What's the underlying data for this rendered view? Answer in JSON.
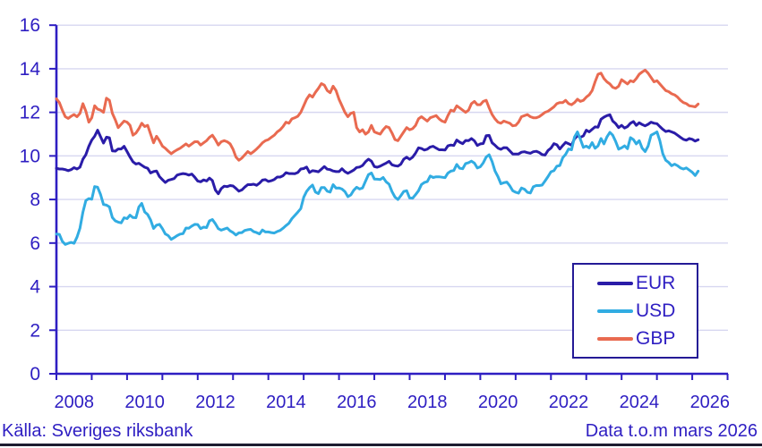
{
  "chart_data": {
    "type": "line",
    "title": "",
    "xlabel": "",
    "ylabel": "",
    "x_unit": "month",
    "x_start": "2008-01",
    "x_end": "2026-03",
    "axis_year_start": 2008,
    "axis_year_end": 2027,
    "ylim": [
      0,
      16
    ],
    "y_ticks": [
      0,
      2,
      4,
      6,
      8,
      10,
      12,
      14,
      16
    ],
    "x_tick_labels": [
      "2008",
      "2010",
      "2012",
      "2014",
      "2016",
      "2018",
      "2020",
      "2022",
      "2024",
      "2026"
    ],
    "grid": "horizontal",
    "legend_position": "lower-right",
    "series": [
      {
        "name": "EUR",
        "color": "#2A1CA8",
        "values": [
          9.43,
          9.4,
          9.4,
          9.37,
          9.32,
          9.37,
          9.46,
          9.4,
          9.48,
          9.85,
          10.06,
          10.44,
          10.73,
          10.9,
          11.18,
          10.88,
          10.59,
          10.86,
          10.83,
          10.23,
          10.22,
          10.32,
          10.32,
          10.44,
          10.2,
          9.95,
          9.73,
          9.63,
          9.66,
          9.57,
          9.48,
          9.43,
          9.22,
          9.28,
          9.31,
          9.05,
          8.91,
          8.78,
          8.88,
          8.92,
          8.96,
          9.12,
          9.16,
          9.19,
          9.17,
          9.12,
          9.17,
          9.02,
          8.85,
          8.81,
          8.9,
          8.85,
          8.98,
          8.87,
          8.44,
          8.26,
          8.5,
          8.61,
          8.59,
          8.64,
          8.62,
          8.51,
          8.38,
          8.44,
          8.57,
          8.68,
          8.68,
          8.7,
          8.65,
          8.75,
          8.89,
          8.91,
          8.83,
          8.86,
          8.92,
          9.03,
          9.03,
          9.09,
          9.23,
          9.19,
          9.19,
          9.18,
          9.24,
          9.4,
          9.42,
          9.49,
          9.24,
          9.32,
          9.3,
          9.27,
          9.39,
          9.51,
          9.39,
          9.37,
          9.31,
          9.28,
          9.28,
          9.41,
          9.28,
          9.2,
          9.27,
          9.35,
          9.47,
          9.49,
          9.56,
          9.73,
          9.85,
          9.76,
          9.51,
          9.48,
          9.53,
          9.6,
          9.67,
          9.75,
          9.59,
          9.55,
          9.53,
          9.62,
          9.85,
          9.94,
          9.84,
          9.94,
          10.13,
          10.37,
          10.34,
          10.27,
          10.31,
          10.41,
          10.44,
          10.36,
          10.28,
          10.28,
          10.27,
          10.46,
          10.5,
          10.48,
          10.73,
          10.63,
          10.56,
          10.71,
          10.7,
          10.8,
          10.69,
          10.48,
          10.55,
          10.57,
          10.93,
          10.94,
          10.6,
          10.49,
          10.36,
          10.3,
          10.38,
          10.37,
          10.23,
          10.09,
          10.09,
          10.09,
          10.17,
          10.19,
          10.15,
          10.12,
          10.19,
          10.21,
          10.16,
          10.06,
          10.04,
          10.25,
          10.36,
          10.56,
          10.51,
          10.32,
          10.48,
          10.62,
          10.56,
          10.49,
          10.78,
          10.93,
          10.85,
          10.92,
          11.18,
          11.1,
          11.22,
          11.33,
          11.32,
          11.68,
          11.78,
          11.85,
          11.89,
          11.6,
          11.48,
          11.3,
          11.4,
          11.28,
          11.35,
          11.5,
          11.58,
          11.4,
          11.52,
          11.44,
          11.38,
          11.45,
          11.55,
          11.5,
          11.48,
          11.35,
          11.22,
          11.12,
          11.15,
          11.1,
          11.05,
          10.95,
          10.85,
          10.76,
          10.72,
          10.8,
          10.76,
          10.68,
          10.74
        ]
      },
      {
        "name": "USD",
        "color": "#31ACE2",
        "values": [
          6.41,
          6.4,
          6.08,
          5.94,
          5.99,
          6.03,
          5.99,
          6.27,
          6.68,
          7.42,
          7.95,
          8.04,
          8.01,
          8.59,
          8.56,
          8.23,
          7.77,
          7.74,
          7.66,
          7.17,
          7.02,
          6.96,
          6.93,
          7.16,
          7.12,
          7.28,
          7.17,
          7.16,
          7.66,
          7.82,
          7.43,
          7.31,
          7.06,
          6.67,
          6.82,
          6.86,
          6.66,
          6.42,
          6.34,
          6.17,
          6.25,
          6.34,
          6.41,
          6.43,
          6.69,
          6.68,
          6.78,
          6.86,
          6.85,
          6.66,
          6.73,
          6.71,
          7.02,
          7.08,
          6.89,
          6.66,
          6.59,
          6.64,
          6.69,
          6.56,
          6.48,
          6.37,
          6.47,
          6.48,
          6.58,
          6.61,
          6.63,
          6.52,
          6.48,
          6.42,
          6.6,
          6.51,
          6.51,
          6.48,
          6.46,
          6.53,
          6.58,
          6.68,
          6.8,
          6.91,
          7.12,
          7.27,
          7.42,
          7.58,
          8.1,
          8.37,
          8.54,
          8.66,
          8.34,
          8.27,
          8.55,
          8.55,
          8.38,
          8.34,
          8.68,
          8.52,
          8.53,
          8.48,
          8.36,
          8.13,
          8.21,
          8.42,
          8.56,
          8.48,
          8.53,
          8.84,
          9.14,
          9.22,
          8.94,
          8.93,
          8.92,
          9.01,
          8.81,
          8.7,
          8.36,
          8.11,
          8.0,
          8.17,
          8.37,
          8.4,
          8.07,
          8.06,
          8.22,
          8.4,
          8.69,
          8.78,
          8.82,
          9.08,
          9.01,
          9.04,
          9.04,
          9.02,
          9.0,
          9.21,
          9.3,
          9.33,
          9.61,
          9.43,
          9.41,
          9.65,
          9.69,
          9.76,
          9.67,
          9.45,
          9.5,
          9.68,
          9.95,
          10.05,
          9.74,
          9.31,
          9.05,
          8.72,
          8.77,
          8.8,
          8.63,
          8.4,
          8.33,
          8.29,
          8.53,
          8.47,
          8.33,
          8.3,
          8.58,
          8.64,
          8.64,
          8.66,
          8.85,
          9.05,
          9.27,
          9.32,
          9.53,
          9.56,
          9.92,
          10.07,
          10.32,
          10.28,
          10.87,
          11.1,
          10.76,
          10.39,
          10.45,
          10.37,
          10.61,
          10.35,
          10.46,
          10.8,
          10.55,
          10.87,
          11.08,
          10.95,
          10.66,
          10.31,
          10.37,
          10.46,
          10.33,
          10.84,
          10.75,
          10.55,
          10.7,
          10.35,
          10.2,
          10.45,
          10.95,
          11.02,
          11.1,
          10.7,
          10.1,
          9.8,
          9.7,
          9.55,
          9.62,
          9.55,
          9.45,
          9.4,
          9.45,
          9.35,
          9.25,
          9.1,
          9.3
        ]
      },
      {
        "name": "GBP",
        "color": "#E96A50",
        "values": [
          12.62,
          12.45,
          12.1,
          11.8,
          11.72,
          11.82,
          11.9,
          11.8,
          11.95,
          12.4,
          12.05,
          11.55,
          11.75,
          12.3,
          12.15,
          12.1,
          12.0,
          12.65,
          12.55,
          11.95,
          11.65,
          11.3,
          11.45,
          11.6,
          11.55,
          11.4,
          10.95,
          11.05,
          11.25,
          11.5,
          11.35,
          11.4,
          11.0,
          10.6,
          10.9,
          10.7,
          10.45,
          10.35,
          10.22,
          10.1,
          10.2,
          10.28,
          10.35,
          10.45,
          10.55,
          10.45,
          10.55,
          10.65,
          10.65,
          10.5,
          10.6,
          10.7,
          10.85,
          10.95,
          10.75,
          10.5,
          10.65,
          10.7,
          10.65,
          10.55,
          10.3,
          9.95,
          9.8,
          9.9,
          10.05,
          10.2,
          10.1,
          10.2,
          10.32,
          10.45,
          10.6,
          10.7,
          10.75,
          10.85,
          10.95,
          11.1,
          11.2,
          11.35,
          11.55,
          11.5,
          11.7,
          11.75,
          11.82,
          12.0,
          12.3,
          12.6,
          12.8,
          12.7,
          12.92,
          13.1,
          13.32,
          13.25,
          13.0,
          12.9,
          13.2,
          13.0,
          12.6,
          12.3,
          12.0,
          11.8,
          11.95,
          12.0,
          11.3,
          11.1,
          11.2,
          11.0,
          11.1,
          11.4,
          11.1,
          11.05,
          11.0,
          11.2,
          11.35,
          11.3,
          11.05,
          10.75,
          10.7,
          10.9,
          11.1,
          11.3,
          11.2,
          11.25,
          11.4,
          11.7,
          11.8,
          11.7,
          11.6,
          11.75,
          11.8,
          11.85,
          11.7,
          11.6,
          11.55,
          11.85,
          12.1,
          12.05,
          12.3,
          12.2,
          12.1,
          12.0,
          12.1,
          12.4,
          12.5,
          12.35,
          12.35,
          12.5,
          12.55,
          12.2,
          11.9,
          11.7,
          11.55,
          11.5,
          11.6,
          11.55,
          11.5,
          11.38,
          11.4,
          11.55,
          11.8,
          11.85,
          11.9,
          11.8,
          11.75,
          11.75,
          11.8,
          11.9,
          12.0,
          12.05,
          12.15,
          12.25,
          12.4,
          12.45,
          12.45,
          12.55,
          12.4,
          12.35,
          12.45,
          12.6,
          12.5,
          12.55,
          12.7,
          12.8,
          13.0,
          13.4,
          13.75,
          13.8,
          13.55,
          13.4,
          13.3,
          13.15,
          13.1,
          13.2,
          13.5,
          13.4,
          13.3,
          13.45,
          13.4,
          13.55,
          13.75,
          13.85,
          13.94,
          13.8,
          13.6,
          13.4,
          13.45,
          13.3,
          13.15,
          13.0,
          12.95,
          12.85,
          12.8,
          12.7,
          12.55,
          12.45,
          12.4,
          12.3,
          12.28,
          12.25,
          12.38
        ]
      }
    ]
  },
  "footer": {
    "source": "Källa: Sveriges riksbank",
    "data_through": "Data t.o.m mars 2026"
  },
  "colors": {
    "axis": "#2E1EC2",
    "grid": "#D7D7F0",
    "background": "#FFFFFF",
    "legend_border": "#241A96",
    "bottom_rule": "#1C1C30"
  }
}
